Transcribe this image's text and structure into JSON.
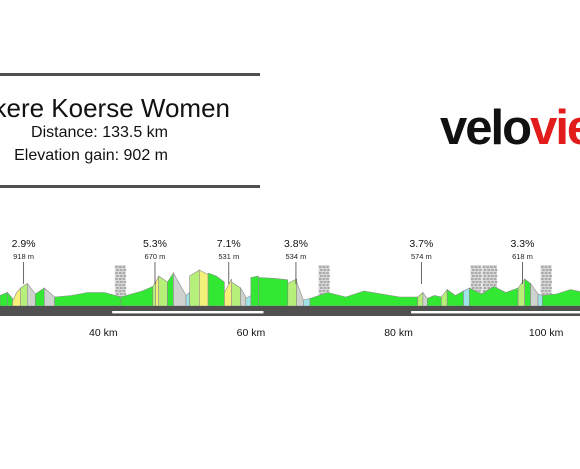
{
  "race": {
    "name": "kere Koerse Women",
    "distance_text": "Distance: 133.5 km",
    "elevation_text": "Elevation gain: 902 m"
  },
  "logo": {
    "part1": "velo",
    "part2": "vie"
  },
  "colors": {
    "rule": "#505050",
    "ground": "#505050",
    "green": "#33e833",
    "light_green": "#b6f07a",
    "yellow": "#f4f07a",
    "gray_climb": "#cfd3cf",
    "cyan": "#9fe3e6",
    "logo_red": "#e21b1b"
  },
  "chart_data": {
    "type": "area",
    "title": "",
    "xlabel": "",
    "ylabel": "",
    "x_unit": "km",
    "xlim": [
      26,
      109
    ],
    "x_ticks": [
      {
        "km": 40,
        "label": "40 km"
      },
      {
        "km": 60,
        "label": "60 km"
      },
      {
        "km": 80,
        "label": "80 km"
      },
      {
        "km": 100,
        "label": "100 km"
      }
    ],
    "climbs": [
      {
        "km": 29.2,
        "gradient": "2.9%",
        "length": "918 m"
      },
      {
        "km": 47.0,
        "gradient": "5.3%",
        "length": "670 m"
      },
      {
        "km": 57.0,
        "gradient": "7.1%",
        "length": "531 m"
      },
      {
        "km": 66.1,
        "gradient": "3.8%",
        "length": "534 m"
      },
      {
        "km": 83.1,
        "gradient": "3.7%",
        "length": "574 m"
      },
      {
        "km": 96.8,
        "gradient": "3.3%",
        "length": "618 m"
      }
    ],
    "cobble_sectors_km": [
      42.3,
      69.9,
      90.5,
      92.1,
      92.6,
      100.0
    ],
    "flat_bars_km": [
      [
        41.2,
        61.7
      ],
      [
        81.7,
        108.3
      ]
    ],
    "segments": [
      {
        "x0": 26.0,
        "x1": 27.0,
        "tops": [
          0.7,
          0.9
        ],
        "color": "green"
      },
      {
        "x0": 27.0,
        "x1": 27.7,
        "tops": [
          0.9,
          0.7,
          0.5
        ],
        "color": "green"
      },
      {
        "x0": 27.7,
        "x1": 28.8,
        "tops": [
          0.3,
          0.9,
          1.2
        ],
        "color": "yellow"
      },
      {
        "x0": 28.8,
        "x1": 29.7,
        "tops": [
          1.2,
          1.5
        ],
        "color": "light_green"
      },
      {
        "x0": 29.7,
        "x1": 30.8,
        "tops": [
          1.5,
          0.8
        ],
        "color": "gray_climb"
      },
      {
        "x0": 30.8,
        "x1": 32.0,
        "tops": [
          0.8,
          1.2
        ],
        "color": "green"
      },
      {
        "x0": 32.0,
        "x1": 33.4,
        "tops": [
          1.2,
          0.6
        ],
        "color": "gray_climb"
      },
      {
        "x0": 33.4,
        "x1": 42.4,
        "tops": [
          0.6,
          0.7,
          0.9,
          0.9,
          0.6
        ],
        "color": "green"
      },
      {
        "x0": 42.4,
        "x1": 46.7,
        "tops": [
          0.6,
          0.8,
          1.0,
          1.3
        ],
        "color": "green"
      },
      {
        "x0": 46.7,
        "x1": 47.1,
        "tops": [
          1.3,
          1.6
        ],
        "color": "light_green"
      },
      {
        "x0": 47.1,
        "x1": 47.5,
        "tops": [
          1.6,
          2.0
        ],
        "color": "yellow"
      },
      {
        "x0": 47.5,
        "x1": 48.7,
        "tops": [
          2.0,
          1.6
        ],
        "color": "light_green"
      },
      {
        "x0": 48.7,
        "x1": 49.5,
        "tops": [
          1.6,
          2.2
        ],
        "color": "green"
      },
      {
        "x0": 49.5,
        "x1": 51.2,
        "tops": [
          2.2,
          0.7
        ],
        "color": "gray_climb"
      },
      {
        "x0": 51.2,
        "x1": 51.7,
        "tops": [
          0.7,
          0.9
        ],
        "color": "cyan"
      },
      {
        "x0": 51.7,
        "x1": 53.0,
        "tops": [
          2.0,
          2.4
        ],
        "color": "light_green"
      },
      {
        "x0": 53.0,
        "x1": 54.2,
        "tops": [
          2.4,
          2.1
        ],
        "color": "yellow"
      },
      {
        "x0": 54.2,
        "x1": 56.4,
        "tops": [
          2.2,
          2.0,
          1.6
        ],
        "color": "green"
      },
      {
        "x0": 56.4,
        "x1": 57.4,
        "tops": [
          0.9,
          1.8
        ],
        "color": "yellow"
      },
      {
        "x0": 57.4,
        "x1": 58.6,
        "tops": [
          1.6,
          1.2
        ],
        "color": "light_green"
      },
      {
        "x0": 58.6,
        "x1": 59.3,
        "tops": [
          1.2,
          0.6
        ],
        "color": "gray_climb"
      },
      {
        "x0": 59.3,
        "x1": 60.0,
        "tops": [
          0.5,
          0.7
        ],
        "color": "cyan"
      },
      {
        "x0": 60.0,
        "x1": 61.0,
        "tops": [
          1.9,
          2.0
        ],
        "color": "green"
      },
      {
        "x0": 61.0,
        "x1": 65.0,
        "tops": [
          1.9,
          1.85,
          1.75
        ],
        "color": "green"
      },
      {
        "x0": 65.0,
        "x1": 66.2,
        "tops": [
          1.5,
          1.8
        ],
        "color": "light_green"
      },
      {
        "x0": 66.2,
        "x1": 67.1,
        "tops": [
          1.6,
          0.4
        ],
        "color": "gray_climb"
      },
      {
        "x0": 67.1,
        "x1": 68.0,
        "tops": [
          0.4,
          0.5
        ],
        "color": "cyan"
      },
      {
        "x0": 68.0,
        "x1": 82.6,
        "tops": [
          0.5,
          0.9,
          0.6,
          1.0,
          0.8,
          0.6,
          0.6
        ],
        "color": "green"
      },
      {
        "x0": 82.6,
        "x1": 83.3,
        "tops": [
          0.6,
          0.9
        ],
        "color": "light_green"
      },
      {
        "x0": 83.3,
        "x1": 83.9,
        "tops": [
          0.9,
          0.5
        ],
        "color": "gray_climb"
      },
      {
        "x0": 83.9,
        "x1": 85.8,
        "tops": [
          0.5,
          0.7,
          0.6
        ],
        "color": "green"
      },
      {
        "x0": 85.8,
        "x1": 86.6,
        "tops": [
          0.6,
          1.1
        ],
        "color": "light_green"
      },
      {
        "x0": 86.6,
        "x1": 88.8,
        "tops": [
          1.1,
          0.7,
          1.0
        ],
        "color": "green"
      },
      {
        "x0": 88.8,
        "x1": 89.6,
        "tops": [
          1.0,
          1.2
        ],
        "color": "cyan"
      },
      {
        "x0": 89.6,
        "x1": 96.2,
        "tops": [
          1.2,
          0.8,
          1.3,
          0.9,
          1.2
        ],
        "color": "green"
      },
      {
        "x0": 96.2,
        "x1": 97.1,
        "tops": [
          1.2,
          1.8
        ],
        "color": "light_green"
      },
      {
        "x0": 97.1,
        "x1": 97.9,
        "tops": [
          1.8,
          1.5
        ],
        "color": "green"
      },
      {
        "x0": 97.9,
        "x1": 98.9,
        "tops": [
          1.5,
          0.8
        ],
        "color": "gray_climb"
      },
      {
        "x0": 98.9,
        "x1": 99.5,
        "tops": [
          0.8,
          0.7
        ],
        "color": "cyan"
      },
      {
        "x0": 99.5,
        "x1": 109.0,
        "tops": [
          0.7,
          0.8,
          1.1,
          0.9,
          1.6,
          2.0
        ],
        "color": "green"
      }
    ]
  }
}
